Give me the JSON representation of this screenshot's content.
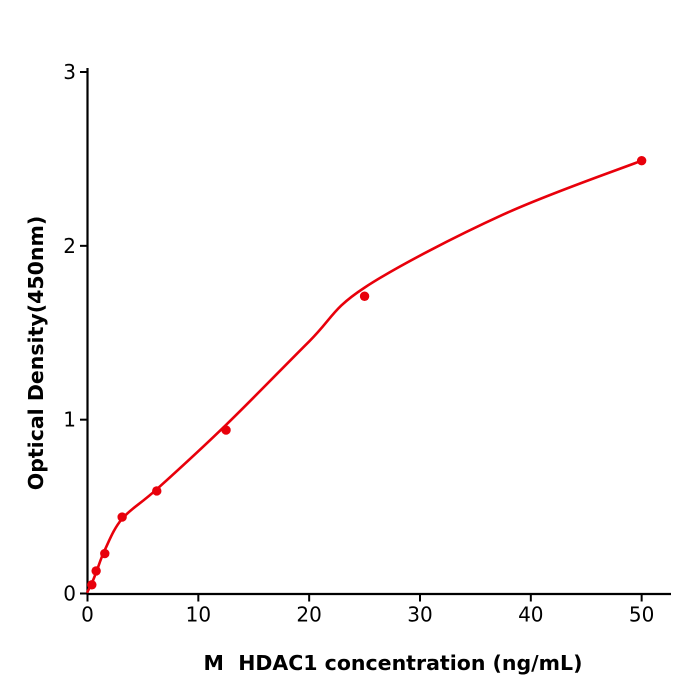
{
  "figure": {
    "background": "#ffffff",
    "text_color": "#000000",
    "axis_color": "#000000"
  },
  "chart_data": {
    "type": "scatter",
    "title": "",
    "xlabel": "M  HDAC1 concentration (ng/mL)",
    "ylabel": "Optical Density(450nm)",
    "xlim": [
      0,
      52.6
    ],
    "ylim": [
      0,
      3
    ],
    "x_ticks": [
      "0",
      "10",
      "20",
      "30",
      "40",
      "50"
    ],
    "x_tick_values": [
      0,
      10,
      20,
      30,
      40,
      50
    ],
    "y_ticks": [
      "0",
      "1",
      "2",
      "3"
    ],
    "y_tick_values": [
      0,
      1,
      2,
      3
    ],
    "grid": false,
    "legend_position": "none",
    "accent_color": "#e8000b",
    "series": [
      {
        "name": "standard-points",
        "type": "scatter",
        "color": "#e8000b",
        "x": [
          0.39,
          0.78,
          1.56,
          3.125,
          6.25,
          12.5,
          25,
          50
        ],
        "y": [
          0.05,
          0.13,
          0.23,
          0.44,
          0.59,
          0.94,
          1.71,
          2.49
        ]
      },
      {
        "name": "fitted-curve",
        "type": "line",
        "color": "#e8000b",
        "x": [
          0,
          0.39,
          0.78,
          1.56,
          3.125,
          6.25,
          12.5,
          20,
          25,
          37.5,
          50
        ],
        "y": [
          0.01,
          0.06,
          0.12,
          0.25,
          0.43,
          0.6,
          0.97,
          1.45,
          1.76,
          2.18,
          2.49
        ]
      }
    ]
  }
}
